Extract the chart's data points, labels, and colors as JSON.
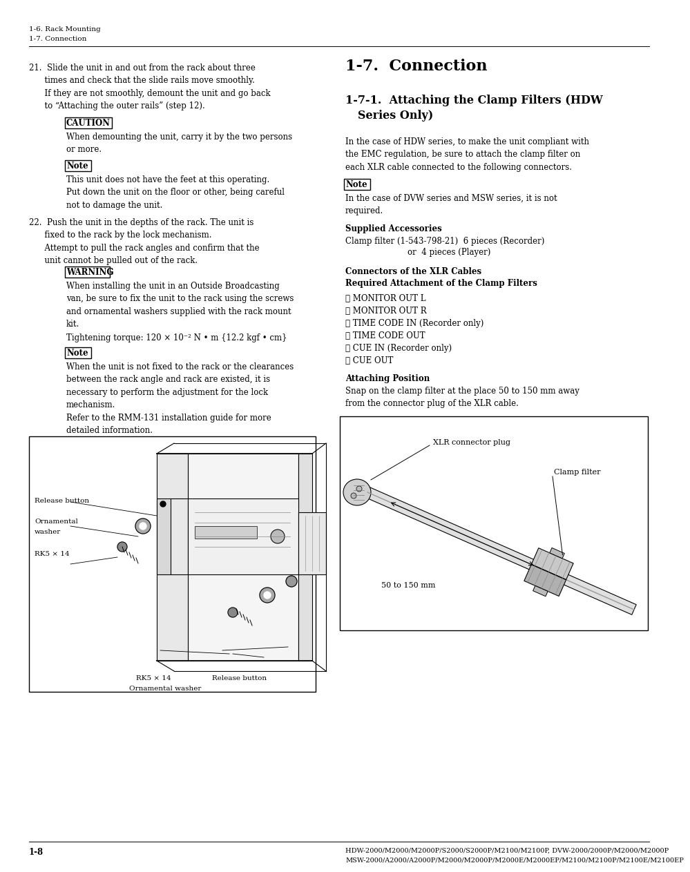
{
  "page_bg": "#ffffff",
  "header_line1": "1-6. Rack Mounting",
  "header_line2": "1-7. Connection",
  "footer_left": "1-8",
  "footer_right1": "HDW-2000/M2000/M2000P/S2000/S2000P/M2100/M2100P, DVW-2000/2000P/M2000/M2000P",
  "footer_right2": "MSW-2000/A2000/A2000P/M2000/M2000P/M2000E/M2000EP/M2100/M2100P/M2100E/M2100EP",
  "section_h1": "1-7.  Connection",
  "section_h2_line1": "1-7-1.  Attaching the Clamp Filters (HDW",
  "section_h2_line2": "         Series Only)",
  "right_intro": "In the case of HDW series, to make the unit compliant with\nthe EMC regulation, be sure to attach the clamp filter on\neach XLR cable connected to the following connectors.",
  "note_right_text": "In the case of DVW series and MSW series, it is not\nrequired.",
  "supplied_acc_title": "Supplied Accessories",
  "supplied_acc_line1": "Clamp filter (1-543-798-21)  6 pieces (Recorder)",
  "supplied_acc_line2": "                                      or  4 pieces (Player)",
  "conn_title1": "Connectors of the XLR Cables",
  "conn_title2": "Required Attachment of the Clamp Filters",
  "bullets": [
    "・ MONITOR OUT L",
    "・ MONITOR OUT R",
    "・ TIME CODE IN (Recorder only)",
    "・ TIME CODE OUT",
    "・ CUE IN (Recorder only)",
    "・ CUE OUT"
  ],
  "att_pos_title": "Attaching Position",
  "att_pos_text": "Snap on the clamp filter at the place 50 to 150 mm away\nfrom the connector plug of the XLR cable.",
  "xlr_label": "XLR connector plug",
  "clamp_label": "Clamp filter",
  "mm_label": "50 to 150 mm",
  "item21": "21.  Slide the unit in and out from the rack about three\n      times and check that the slide rails move smoothly.\n      If they are not smoothly, demount the unit and go back\n      to “Attaching the outer rails” (step 12).",
  "caution_text": "When demounting the unit, carry it by the two persons\nor more.",
  "note1_text": "This unit does not have the feet at this operating.\nPut down the unit on the floor or other, being careful\nnot to damage the unit.",
  "item22": "22.  Push the unit in the depths of the rack. The unit is\n      fixed to the rack by the lock mechanism.\n      Attempt to pull the rack angles and confirm that the\n      unit cannot be pulled out of the rack.",
  "warning_text": "When installing the unit in an Outside Broadcasting\nvan, be sure to fix the unit to the rack using the screws\nand ornamental washers supplied with the rack mount\nkit.",
  "torque_text": "Tightening torque: 120 × 10⁻² N • m {12.2 kgf • cm}",
  "note2_text": "When the unit is not fixed to the rack or the clearances\nbetween the rack angle and rack are existed, it is\nnecessary to perform the adjustment for the lock\nmechanism.\nRefer to the RMM-131 installation guide for more\ndetailed information.",
  "label_release_btn": "Release button",
  "label_ornamental": "Ornamental",
  "label_washer": "washer",
  "label_rk5_14": "RK5 × 14",
  "label_rk5_14b": "RK5 × 14",
  "label_release_btn2": "Release button",
  "label_ornamental_washer": "Ornamental washer"
}
